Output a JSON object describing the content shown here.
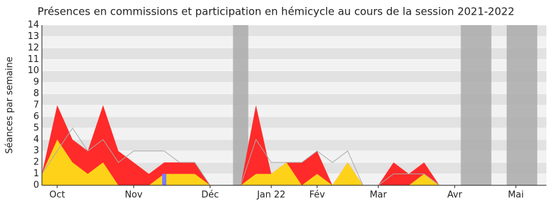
{
  "chart_data": {
    "type": "area",
    "title": "Présences en commissions et participation en hémicycle au cours de la session 2021-2022",
    "y_label": "Séances par semaine",
    "x": [
      0,
      1,
      2,
      3,
      4,
      5,
      6,
      7,
      8,
      9,
      10,
      11,
      12,
      13,
      14,
      15,
      16,
      17,
      18,
      19,
      20,
      21,
      22,
      23,
      24,
      25,
      26
    ],
    "xlim": [
      0,
      33
    ],
    "xticks": [
      {
        "value": 1,
        "label": "Oct"
      },
      {
        "value": 6,
        "label": "Nov"
      },
      {
        "value": 11,
        "label": "Déc"
      },
      {
        "value": 15,
        "label": "Jan 22"
      },
      {
        "value": 18,
        "label": "Fév"
      },
      {
        "value": 22,
        "label": "Mar"
      },
      {
        "value": 27,
        "label": "Avr"
      },
      {
        "value": 31,
        "label": "Mai"
      }
    ],
    "ylim": [
      0,
      14
    ],
    "yticks": [
      0,
      1,
      2,
      3,
      4,
      5,
      6,
      7,
      8,
      9,
      10,
      11,
      12,
      13,
      14
    ],
    "shaded_periods": [
      [
        12.5,
        13.5
      ],
      [
        27.4,
        29.4
      ],
      [
        30.4,
        32.4
      ]
    ],
    "series": [
      {
        "kind": "area",
        "color": "#ff2a2a",
        "values": [
          1,
          7,
          4,
          3,
          7,
          3,
          2,
          1,
          2,
          2,
          2,
          0,
          0,
          0,
          7,
          1,
          2,
          2,
          3,
          0,
          2,
          0,
          0,
          2,
          1,
          2,
          0
        ]
      },
      {
        "kind": "area",
        "color": "#ffd21a",
        "values": [
          1,
          4,
          2,
          1,
          2,
          0,
          0,
          0,
          1,
          1,
          1,
          0,
          0,
          0,
          1,
          1,
          2,
          0,
          1,
          0,
          2,
          0,
          0,
          0,
          0,
          1,
          0
        ]
      },
      {
        "kind": "line",
        "color": "#aaaaaa",
        "values": [
          1,
          3,
          5,
          3,
          4,
          2,
          3,
          3,
          3,
          2,
          2,
          0,
          0,
          0,
          4,
          2,
          2,
          2,
          3,
          2,
          3,
          0,
          0,
          1,
          1,
          1,
          0
        ]
      },
      {
        "kind": "bar",
        "color": "#7b7bff",
        "x": [
          8
        ],
        "values": [
          1
        ]
      }
    ]
  }
}
